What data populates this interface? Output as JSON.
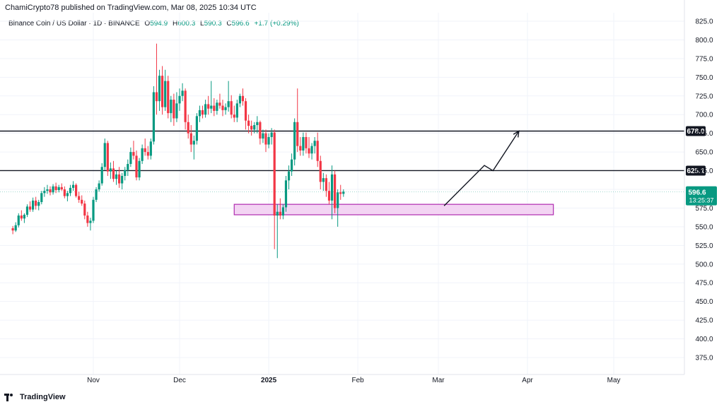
{
  "header": {
    "publisher": "ChamiCrypto78 published on TradingView.com, Mar 08, 2025 10:34 UTC"
  },
  "symbol": {
    "name": "Binance Coin / US Dollar · 1D · BINANCE",
    "open_label": "O",
    "open": "594.9",
    "high_label": "H",
    "high": "600.3",
    "low_label": "L",
    "low": "590.3",
    "close_label": "C",
    "close": "596.6",
    "change": "+1.7 (+0.29%)"
  },
  "footer": {
    "brand": "TradingView"
  },
  "colors": {
    "up": "#089981",
    "down": "#f23645",
    "grid": "#f0f3fa",
    "zone_fill": "#f3d4f3",
    "zone_stroke": "#b02bb0",
    "level_line": "#131722",
    "price_tag": "#089981",
    "axis_text": "#131722"
  },
  "chart_data": {
    "type": "candlestick",
    "y_axis_ticks": [
      "375.0",
      "400.0",
      "425.0",
      "450.0",
      "475.0",
      "500.0",
      "525.0",
      "550.0",
      "575.0",
      "600.0",
      "625.0",
      "650.0",
      "675.0",
      "700.0",
      "725.0",
      "750.0",
      "775.0",
      "800.0",
      "825.0"
    ],
    "ylim": [
      355,
      830
    ],
    "x_axis_ticks": [
      "Nov",
      "Dec",
      "2025",
      "Feb",
      "Mar",
      "Apr",
      "May"
    ],
    "levels": [
      {
        "value": 678.0,
        "label": "678.0"
      },
      {
        "value": 625.1,
        "label": "625.1"
      }
    ],
    "current_price": {
      "value": 596.6,
      "label": "596.6",
      "countdown": "13:25:37"
    },
    "support_zone": {
      "from_date": "2024-12-20",
      "to_date": "2025-04-10",
      "low": 566,
      "high": 580
    },
    "projection_path": [
      {
        "date": "2025-03-03",
        "price": 578
      },
      {
        "date": "2025-03-17",
        "price": 632
      },
      {
        "date": "2025-03-20",
        "price": 625
      },
      {
        "date": "2025-03-29",
        "price": 678
      }
    ],
    "candles_start_date": "2024-10-04",
    "candles": [
      [
        548,
        551,
        540,
        545
      ],
      [
        545,
        556,
        543,
        552
      ],
      [
        552,
        568,
        549,
        565
      ],
      [
        565,
        572,
        558,
        561
      ],
      [
        561,
        568,
        555,
        566
      ],
      [
        566,
        580,
        563,
        577
      ],
      [
        577,
        584,
        570,
        573
      ],
      [
        573,
        589,
        570,
        585
      ],
      [
        585,
        590,
        573,
        578
      ],
      [
        578,
        586,
        572,
        583
      ],
      [
        583,
        598,
        580,
        595
      ],
      [
        595,
        603,
        590,
        598
      ],
      [
        598,
        606,
        594,
        600
      ],
      [
        600,
        604,
        592,
        596
      ],
      [
        596,
        607,
        593,
        604
      ],
      [
        604,
        609,
        595,
        599
      ],
      [
        599,
        606,
        596,
        603
      ],
      [
        603,
        608,
        598,
        600
      ],
      [
        600,
        604,
        588,
        591
      ],
      [
        591,
        598,
        584,
        595
      ],
      [
        595,
        606,
        591,
        602
      ],
      [
        602,
        611,
        598,
        606
      ],
      [
        606,
        608,
        589,
        591
      ],
      [
        591,
        597,
        582,
        586
      ],
      [
        586,
        592,
        578,
        581
      ],
      [
        581,
        585,
        560,
        565
      ],
      [
        565,
        570,
        550,
        555
      ],
      [
        555,
        562,
        545,
        558
      ],
      [
        558,
        590,
        555,
        586
      ],
      [
        586,
        603,
        583,
        600
      ],
      [
        600,
        612,
        597,
        608
      ],
      [
        608,
        635,
        605,
        630
      ],
      [
        630,
        668,
        626,
        662
      ],
      [
        662,
        665,
        618,
        624
      ],
      [
        624,
        636,
        614,
        628
      ],
      [
        628,
        638,
        610,
        614
      ],
      [
        614,
        625,
        606,
        620
      ],
      [
        620,
        630,
        602,
        608
      ],
      [
        608,
        622,
        600,
        618
      ],
      [
        618,
        630,
        612,
        626
      ],
      [
        626,
        640,
        618,
        634
      ],
      [
        634,
        656,
        630,
        650
      ],
      [
        650,
        665,
        640,
        645
      ],
      [
        645,
        652,
        612,
        616
      ],
      [
        616,
        642,
        612,
        638
      ],
      [
        638,
        660,
        634,
        655
      ],
      [
        655,
        668,
        645,
        650
      ],
      [
        650,
        658,
        640,
        645
      ],
      [
        645,
        668,
        640,
        664
      ],
      [
        664,
        738,
        660,
        730
      ],
      [
        730,
        795,
        700,
        718
      ],
      [
        718,
        760,
        705,
        752
      ],
      [
        752,
        765,
        700,
        710
      ],
      [
        710,
        760,
        705,
        745
      ],
      [
        745,
        752,
        695,
        702
      ],
      [
        702,
        725,
        690,
        720
      ],
      [
        720,
        728,
        685,
        695
      ],
      [
        695,
        730,
        690,
        715
      ],
      [
        715,
        735,
        705,
        725
      ],
      [
        725,
        742,
        718,
        732
      ],
      [
        732,
        735,
        680,
        690
      ],
      [
        690,
        700,
        668,
        675
      ],
      [
        675,
        686,
        650,
        660
      ],
      [
        660,
        672,
        640,
        665
      ],
      [
        665,
        702,
        660,
        698
      ],
      [
        698,
        712,
        690,
        706
      ],
      [
        706,
        712,
        695,
        700
      ],
      [
        700,
        720,
        696,
        714
      ],
      [
        714,
        725,
        700,
        708
      ],
      [
        708,
        745,
        702,
        712
      ],
      [
        712,
        722,
        698,
        705
      ],
      [
        705,
        720,
        700,
        716
      ],
      [
        716,
        728,
        708,
        712
      ],
      [
        712,
        720,
        698,
        706
      ],
      [
        706,
        715,
        700,
        710
      ],
      [
        710,
        745,
        704,
        718
      ],
      [
        718,
        726,
        695,
        700
      ],
      [
        700,
        712,
        690,
        696
      ],
      [
        696,
        720,
        690,
        715
      ],
      [
        715,
        728,
        710,
        725
      ],
      [
        725,
        735,
        712,
        718
      ],
      [
        718,
        722,
        680,
        692
      ],
      [
        692,
        700,
        675,
        685
      ],
      [
        685,
        692,
        672,
        680
      ],
      [
        680,
        690,
        675,
        686
      ],
      [
        686,
        698,
        675,
        690
      ],
      [
        690,
        692,
        660,
        668
      ],
      [
        668,
        680,
        662,
        675
      ],
      [
        675,
        680,
        650,
        660
      ],
      [
        660,
        675,
        655,
        670
      ],
      [
        670,
        682,
        660,
        676
      ],
      [
        676,
        680,
        520,
        565
      ],
      [
        565,
        580,
        508,
        570
      ],
      [
        570,
        588,
        560,
        565
      ],
      [
        565,
        580,
        560,
        576
      ],
      [
        576,
        618,
        570,
        612
      ],
      [
        612,
        632,
        600,
        624
      ],
      [
        624,
        648,
        618,
        640
      ],
      [
        640,
        695,
        632,
        690
      ],
      [
        690,
        735,
        650,
        658
      ],
      [
        658,
        670,
        645,
        652
      ],
      [
        652,
        676,
        645,
        670
      ],
      [
        670,
        676,
        648,
        655
      ],
      [
        655,
        670,
        642,
        648
      ],
      [
        648,
        662,
        640,
        658
      ],
      [
        658,
        670,
        648,
        665
      ],
      [
        665,
        676,
        630,
        638
      ],
      [
        638,
        645,
        600,
        610
      ],
      [
        610,
        622,
        598,
        615
      ],
      [
        615,
        620,
        590,
        598
      ],
      [
        598,
        610,
        580,
        585
      ],
      [
        585,
        632,
        560,
        620
      ],
      [
        620,
        625,
        568,
        575
      ],
      [
        575,
        600,
        550,
        596
      ],
      [
        596,
        606,
        586,
        594
      ],
      [
        594,
        600,
        590,
        597
      ]
    ]
  }
}
